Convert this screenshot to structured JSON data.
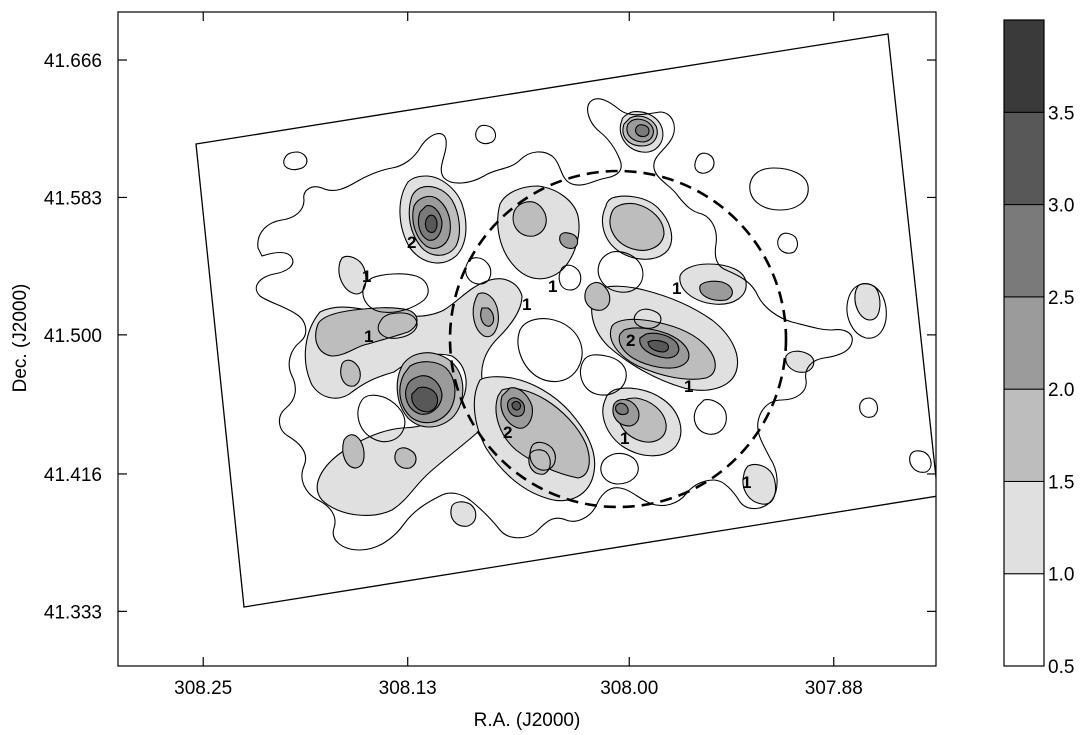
{
  "chart_data": {
    "type": "heatmap",
    "title": "",
    "xlabel": "R.A. (J2000)",
    "ylabel": "Dec. (J2000)",
    "x_ticks": [
      "308.25",
      "308.13",
      "308.00",
      "307.88"
    ],
    "y_ticks": [
      "41.666",
      "41.583",
      "41.500",
      "41.416",
      "41.333"
    ],
    "x_tick_values": [
      308.25,
      308.13,
      308.0,
      307.88
    ],
    "y_tick_values": [
      41.666,
      41.583,
      41.5,
      41.416,
      41.333
    ],
    "xlim": [
      308.3,
      307.82
    ],
    "ylim": [
      41.3,
      41.695
    ],
    "colorbar": {
      "ticks": [
        "3.5",
        "3.0",
        "2.5",
        "2.0",
        "1.5",
        "1.0",
        "0.5"
      ],
      "levels": [
        0.5,
        1.0,
        1.5,
        2.0,
        2.5,
        3.0,
        3.5,
        4.0
      ],
      "colors": [
        "#ffffff",
        "#e0e0e0",
        "#bdbdbd",
        "#9b9b9b",
        "#7a7a7a",
        "#585858",
        "#3a3a3a"
      ]
    },
    "contour_labels": [
      "1",
      "1",
      "2",
      "1",
      "1",
      "2",
      "1",
      "2",
      "1",
      "1",
      "1"
    ],
    "features": {
      "survey_field": "rotated rectangle outline",
      "dashed_circle": {
        "center_ra": 308.0,
        "center_dec": 41.5,
        "radius_deg": 0.1
      }
    }
  }
}
